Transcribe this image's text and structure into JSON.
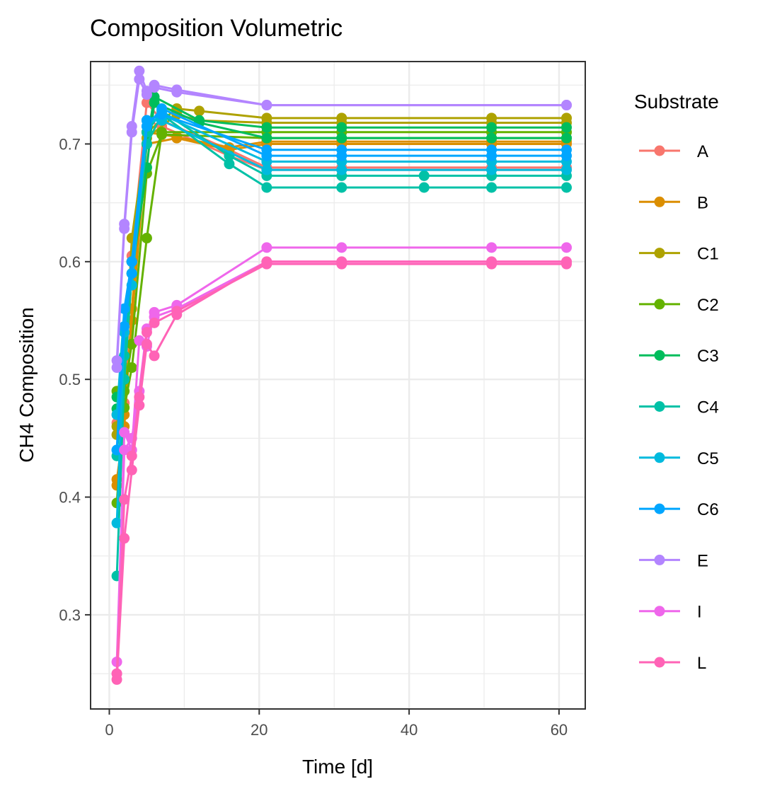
{
  "chart_data": {
    "type": "line",
    "title": "Composition Volumetric",
    "xlabel": "Time [d]",
    "ylabel": "CH4 Composition",
    "xlim": [
      -2.5,
      63.5
    ],
    "ylim": [
      0.22,
      0.77
    ],
    "x_ticks": [
      0,
      20,
      40,
      60
    ],
    "y_ticks": [
      0.3,
      0.4,
      0.5,
      0.6,
      0.7
    ],
    "x_tick_labels": [
      "0",
      "20",
      "40",
      "60"
    ],
    "y_tick_labels": [
      "0.3",
      "0.4",
      "0.5",
      "0.6",
      "0.7"
    ],
    "grid": true,
    "legend_title": "Substrate",
    "legend_position": "right",
    "series": [
      {
        "name": "A",
        "color": "#F8766D",
        "lines": [
          {
            "x": [
              1,
              2,
              3,
              5,
              7,
              16,
              21,
              31,
              51,
              61
            ],
            "y": [
              0.463,
              0.48,
              0.605,
              0.735,
              0.72,
              0.695,
              0.68,
              0.68,
              0.68,
              0.68
            ]
          },
          {
            "x": [
              1,
              2,
              3,
              5,
              7,
              16,
              21,
              31,
              51,
              61
            ],
            "y": [
              0.47,
              0.5,
              0.6,
              0.72,
              0.715,
              0.69,
              0.678,
              0.678,
              0.678,
              0.678
            ]
          }
        ]
      },
      {
        "name": "B",
        "color": "#DB8E00",
        "lines": [
          {
            "x": [
              1,
              2,
              3,
              5,
              9,
              16,
              21,
              31,
              51,
              61
            ],
            "y": [
              0.41,
              0.47,
              0.55,
              0.7,
              0.705,
              0.695,
              0.7,
              0.7,
              0.7,
              0.7
            ]
          },
          {
            "x": [
              1,
              2,
              3,
              5,
              9,
              16,
              21,
              31,
              51,
              61
            ],
            "y": [
              0.415,
              0.46,
              0.56,
              0.71,
              0.706,
              0.697,
              0.702,
              0.702,
              0.702,
              0.702
            ]
          }
        ]
      },
      {
        "name": "C1",
        "color": "#AEA200",
        "lines": [
          {
            "x": [
              1,
              2,
              3,
              5,
              9,
              12,
              21,
              31,
              51,
              61
            ],
            "y": [
              0.453,
              0.5,
              0.62,
              0.71,
              0.73,
              0.728,
              0.722,
              0.722,
              0.722,
              0.722
            ]
          },
          {
            "x": [
              1,
              2,
              3,
              5,
              9,
              12,
              21,
              31,
              51,
              61
            ],
            "y": [
              0.46,
              0.51,
              0.6,
              0.705,
              0.725,
              0.72,
              0.718,
              0.718,
              0.718,
              0.718
            ]
          }
        ]
      },
      {
        "name": "C2",
        "color": "#64B200",
        "lines": [
          {
            "x": [
              1,
              2,
              3,
              5,
              7,
              21,
              31,
              51,
              61
            ],
            "y": [
              0.49,
              0.476,
              0.51,
              0.62,
              0.71,
              0.71,
              0.71,
              0.71,
              0.71
            ]
          },
          {
            "x": [
              1,
              2,
              3,
              5,
              7,
              21,
              31,
              51,
              61
            ],
            "y": [
              0.395,
              0.49,
              0.53,
              0.675,
              0.708,
              0.705,
              0.705,
              0.705,
              0.705
            ]
          }
        ]
      },
      {
        "name": "C3",
        "color": "#00BD5C",
        "lines": [
          {
            "x": [
              1,
              2,
              3,
              5,
              6,
              12,
              21,
              31,
              51,
              61
            ],
            "y": [
              0.475,
              0.52,
              0.6,
              0.7,
              0.74,
              0.72,
              0.714,
              0.714,
              0.714,
              0.714
            ]
          },
          {
            "x": [
              1,
              2,
              3,
              5,
              6,
              12,
              21,
              31,
              51,
              61
            ],
            "y": [
              0.485,
              0.5,
              0.59,
              0.68,
              0.735,
              0.718,
              0.705,
              0.705,
              0.705,
              0.705
            ]
          }
        ]
      },
      {
        "name": "C4",
        "color": "#00C1A7",
        "lines": [
          {
            "x": [
              1,
              2,
              3,
              5,
              7,
              16,
              21,
              31,
              42,
              51,
              61
            ],
            "y": [
              0.333,
              0.5,
              0.59,
              0.7,
              0.725,
              0.683,
              0.663,
              0.663,
              0.663,
              0.663,
              0.663
            ]
          },
          {
            "x": [
              1,
              2,
              3,
              5,
              7,
              16,
              21,
              31,
              42,
              51,
              61
            ],
            "y": [
              0.435,
              0.52,
              0.6,
              0.71,
              0.728,
              0.69,
              0.673,
              0.673,
              0.673,
              0.673,
              0.673
            ]
          }
        ]
      },
      {
        "name": "C5",
        "color": "#00BADE",
        "lines": [
          {
            "x": [
              1,
              2,
              3,
              5,
              7,
              21,
              31,
              51,
              61
            ],
            "y": [
              0.378,
              0.54,
              0.6,
              0.72,
              0.72,
              0.678,
              0.678,
              0.678,
              0.678
            ]
          },
          {
            "x": [
              1,
              2,
              3,
              5,
              7,
              21,
              31,
              51,
              61
            ],
            "y": [
              0.47,
              0.56,
              0.58,
              0.715,
              0.725,
              0.685,
              0.685,
              0.685,
              0.685
            ]
          }
        ]
      },
      {
        "name": "C6",
        "color": "#00A6FF",
        "lines": [
          {
            "x": [
              1,
              2,
              3,
              5,
              7,
              21,
              31,
              51,
              61
            ],
            "y": [
              0.44,
              0.545,
              0.59,
              0.715,
              0.73,
              0.69,
              0.69,
              0.69,
              0.69
            ]
          },
          {
            "x": [
              1,
              2,
              3,
              5,
              7,
              21,
              31,
              51,
              61
            ],
            "y": [
              0.44,
              0.56,
              0.6,
              0.72,
              0.725,
              0.695,
              0.695,
              0.695,
              0.695
            ]
          }
        ]
      },
      {
        "name": "E",
        "color": "#B385FF",
        "lines": [
          {
            "x": [
              1,
              2,
              3,
              4,
              5,
              6,
              9,
              21,
              61
            ],
            "y": [
              0.516,
              0.632,
              0.715,
              0.762,
              0.745,
              0.75,
              0.746,
              0.733,
              0.733
            ]
          },
          {
            "x": [
              1,
              2,
              3,
              4,
              5,
              6,
              9,
              21,
              61
            ],
            "y": [
              0.51,
              0.628,
              0.71,
              0.755,
              0.742,
              0.748,
              0.744,
              0.733,
              0.733
            ]
          }
        ]
      },
      {
        "name": "I",
        "color": "#EF67EB",
        "lines": [
          {
            "x": [
              1,
              2,
              3,
              4,
              5,
              6,
              9,
              21,
              31,
              51,
              61
            ],
            "y": [
              0.26,
              0.455,
              0.44,
              0.533,
              0.528,
              0.557,
              0.563,
              0.612,
              0.612,
              0.612,
              0.612
            ]
          },
          {
            "x": [
              1,
              2,
              3,
              4,
              5,
              6,
              9,
              21,
              31,
              51,
              61
            ],
            "y": [
              0.25,
              0.44,
              0.45,
              0.49,
              0.543,
              0.553,
              0.56,
              0.6,
              0.6,
              0.6,
              0.6
            ]
          }
        ]
      },
      {
        "name": "L",
        "color": "#FF63B6",
        "lines": [
          {
            "x": [
              1,
              2,
              3,
              4,
              5,
              6,
              9,
              21,
              31,
              51,
              61
            ],
            "y": [
              0.245,
              0.365,
              0.423,
              0.478,
              0.53,
              0.52,
              0.555,
              0.6,
              0.6,
              0.6,
              0.6
            ]
          },
          {
            "x": [
              1,
              2,
              3,
              4,
              5,
              6,
              9,
              21,
              31,
              51,
              61
            ],
            "y": [
              0.25,
              0.398,
              0.435,
              0.485,
              0.54,
              0.548,
              0.558,
              0.598,
              0.598,
              0.598,
              0.598
            ]
          }
        ]
      }
    ]
  }
}
